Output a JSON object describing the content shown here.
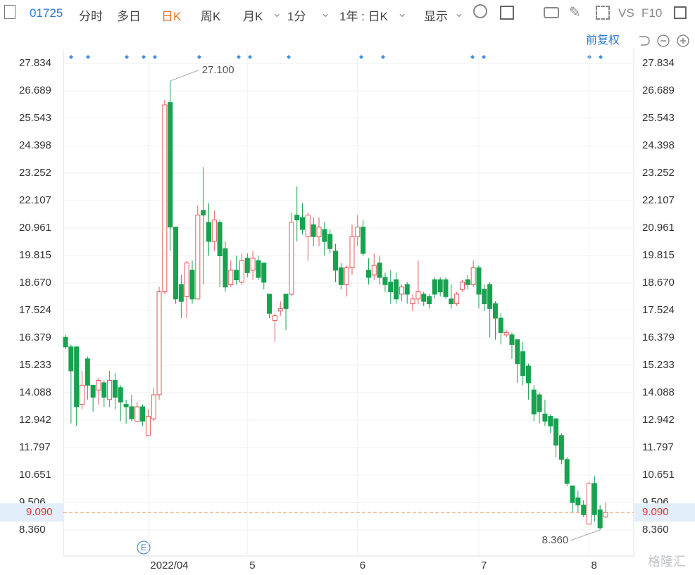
{
  "toolbar": {
    "code": "01725",
    "tabs": [
      "分时",
      "多日",
      "日K",
      "周K",
      "月K"
    ],
    "period": "1分",
    "range": "1年 : 日K",
    "display": "显示",
    "vs": "VS",
    "f10": "F10"
  },
  "adjust": "前复权",
  "watermark": "格隆汇",
  "chart_data": {
    "type": "candlestick",
    "categories": [
      null,
      null,
      null,
      null,
      null,
      null,
      null,
      null,
      null,
      null,
      null,
      null,
      null,
      null,
      null,
      "2022/04",
      null,
      null,
      null,
      null,
      null,
      null,
      null,
      null,
      null,
      null,
      null,
      null,
      null,
      null,
      null,
      null,
      null,
      "5",
      null,
      null,
      null,
      null,
      null,
      null,
      null,
      null,
      null,
      null,
      null,
      null,
      null,
      null,
      null,
      null,
      null,
      null,
      null,
      "6",
      null,
      null,
      null,
      null,
      null,
      null,
      null,
      null,
      null,
      null,
      null,
      null,
      null,
      null,
      null,
      null,
      null,
      null,
      null,
      null,
      null,
      "7",
      null,
      null,
      null,
      null,
      null,
      null,
      null,
      null,
      null,
      null,
      null,
      null,
      null,
      null,
      null,
      null,
      null,
      null,
      null,
      "8",
      null,
      null,
      null
    ],
    "open": [
      16.4,
      16.0,
      16.0,
      13.6,
      15.5,
      14.4,
      14.2,
      14.5,
      13.8,
      14.6,
      14.3,
      13.6,
      13.5,
      12.9,
      13.5,
      12.3,
      13.0,
      14.0,
      18.3,
      26.2,
      21.0,
      18.6,
      18.1,
      19.2,
      18.0,
      21.7,
      21.2,
      20.4,
      21.2,
      20.1,
      18.6,
      19.2,
      18.7,
      19.7,
      19.2,
      19.6,
      19.5,
      18.2,
      17.1,
      17.5,
      18.2,
      18.2,
      21.5,
      21.4,
      20.6,
      21.1,
      20.6,
      20.9,
      20.7,
      20.0,
      19.3,
      18.6,
      19.3,
      20.6,
      21.0,
      19.2,
      19.0,
      19.5,
      18.9,
      18.7,
      18.8,
      18.2,
      18.6,
      17.8,
      18.0,
      18.2,
      18.1,
      18.8,
      18.8,
      18.8,
      18.0,
      17.8,
      18.4,
      18.8,
      18.6,
      19.3,
      18.4,
      18.6,
      17.8,
      17.2,
      16.5,
      16.5,
      16.3,
      15.8,
      15.2,
      14.2,
      14.0,
      13.2,
      13.1,
      13.0,
      12.3,
      11.3,
      10.2,
      9.7,
      9.4,
      8.6,
      10.3,
      9.2,
      8.9
    ],
    "close": [
      16.0,
      15.0,
      13.5,
      14.4,
      14.4,
      13.9,
      14.6,
      13.9,
      14.6,
      13.9,
      13.7,
      13.5,
      13.0,
      13.5,
      12.9,
      13.1,
      14.0,
      18.3,
      26.1,
      21.0,
      18.0,
      17.9,
      19.5,
      18.0,
      21.5,
      21.5,
      20.4,
      21.3,
      19.8,
      18.5,
      19.2,
      18.8,
      19.6,
      19.1,
      19.7,
      18.9,
      18.7,
      17.4,
      17.3,
      17.6,
      17.6,
      21.2,
      21.3,
      20.9,
      21.5,
      20.6,
      21.0,
      20.4,
      20.1,
      19.2,
      18.6,
      19.3,
      20.6,
      21.0,
      19.9,
      18.9,
      19.4,
      18.9,
      18.6,
      18.3,
      18.0,
      18.5,
      18.2,
      18.0,
      18.3,
      17.9,
      17.8,
      18.2,
      18.3,
      18.1,
      17.8,
      18.2,
      18.7,
      18.6,
      19.3,
      18.2,
      17.8,
      17.6,
      17.2,
      16.6,
      16.6,
      16.1,
      15.3,
      14.8,
      14.5,
      13.2,
      13.3,
      12.9,
      12.7,
      11.9,
      11.3,
      10.3,
      9.5,
      9.4,
      9.0,
      10.3,
      9.0,
      8.45,
      9.09
    ],
    "low": [
      15.9,
      12.8,
      12.7,
      13.4,
      13.8,
      13.3,
      13.6,
      13.5,
      13.5,
      13.4,
      12.9,
      12.8,
      12.9,
      12.9,
      12.7,
      12.3,
      12.9,
      13.8,
      18.2,
      20.0,
      17.8,
      17.2,
      17.2,
      17.8,
      18.0,
      18.6,
      19.8,
      20.0,
      18.5,
      18.3,
      18.5,
      18.6,
      18.6,
      18.9,
      18.8,
      18.8,
      18.4,
      17.2,
      16.2,
      17.3,
      16.7,
      18.1,
      20.4,
      20.7,
      19.6,
      20.2,
      20.2,
      19.8,
      19.9,
      18.7,
      18.4,
      18.1,
      19.0,
      20.2,
      19.8,
      18.6,
      18.8,
      18.6,
      18.3,
      17.8,
      17.8,
      17.9,
      17.8,
      17.5,
      17.8,
      17.7,
      17.6,
      18.0,
      18.1,
      18.0,
      17.6,
      17.7,
      18.3,
      18.4,
      18.5,
      17.6,
      17.5,
      16.4,
      16.3,
      16.1,
      16.4,
      15.5,
      14.5,
      14.4,
      13.8,
      12.9,
      12.8,
      12.7,
      12.4,
      11.4,
      11.1,
      10.2,
      9.1,
      9.1,
      8.9,
      8.6,
      8.7,
      8.36,
      8.85
    ],
    "high": [
      16.5,
      16.1,
      16.0,
      15.0,
      15.6,
      14.4,
      14.7,
      14.6,
      15.0,
      14.9,
      14.4,
      13.8,
      14.0,
      13.7,
      13.6,
      13.4,
      14.3,
      18.5,
      26.3,
      27.1,
      21.0,
      19.0,
      19.6,
      19.6,
      21.9,
      23.5,
      22.0,
      21.7,
      21.3,
      20.4,
      19.6,
      19.8,
      19.9,
      19.9,
      20.0,
      19.8,
      19.5,
      18.2,
      17.4,
      17.9,
      18.2,
      21.6,
      22.7,
      22.0,
      21.6,
      21.4,
      21.4,
      21.2,
      20.9,
      20.3,
      19.5,
      19.4,
      21.1,
      21.5,
      21.3,
      19.7,
      19.9,
      19.8,
      19.1,
      19.2,
      19.1,
      18.6,
      18.7,
      18.2,
      19.6,
      18.3,
      18.2,
      18.9,
      18.9,
      18.9,
      18.6,
      18.3,
      18.8,
      19.0,
      19.6,
      19.4,
      18.6,
      18.7,
      17.9,
      17.4,
      16.7,
      16.6,
      16.3,
      16.2,
      15.3,
      14.4,
      14.1,
      13.8,
      13.2,
      13.0,
      12.4,
      11.4,
      10.2,
      10.0,
      9.6,
      10.4,
      10.6,
      9.4,
      9.5
    ],
    "up_color": "#e05a5a",
    "down_color": "#17a24f",
    "ylim": [
      7.273,
      28.421
    ],
    "yticks": [
      {
        "value": 8.36,
        "label": "8.360"
      },
      9.506,
      10.651,
      11.797,
      12.942,
      14.088,
      15.233,
      16.379,
      17.524,
      {
        "value": 18.67,
        "label": "18.670"
      },
      19.815,
      20.961,
      22.107,
      23.252,
      24.398,
      25.543,
      26.689,
      27.834
    ],
    "grid": true,
    "price_line": {
      "value": 9.09,
      "label": "9.090"
    },
    "max_label": {
      "value": 27.1,
      "label": "27.100"
    },
    "min_label": {
      "value": 8.36,
      "label": "8.360"
    }
  }
}
